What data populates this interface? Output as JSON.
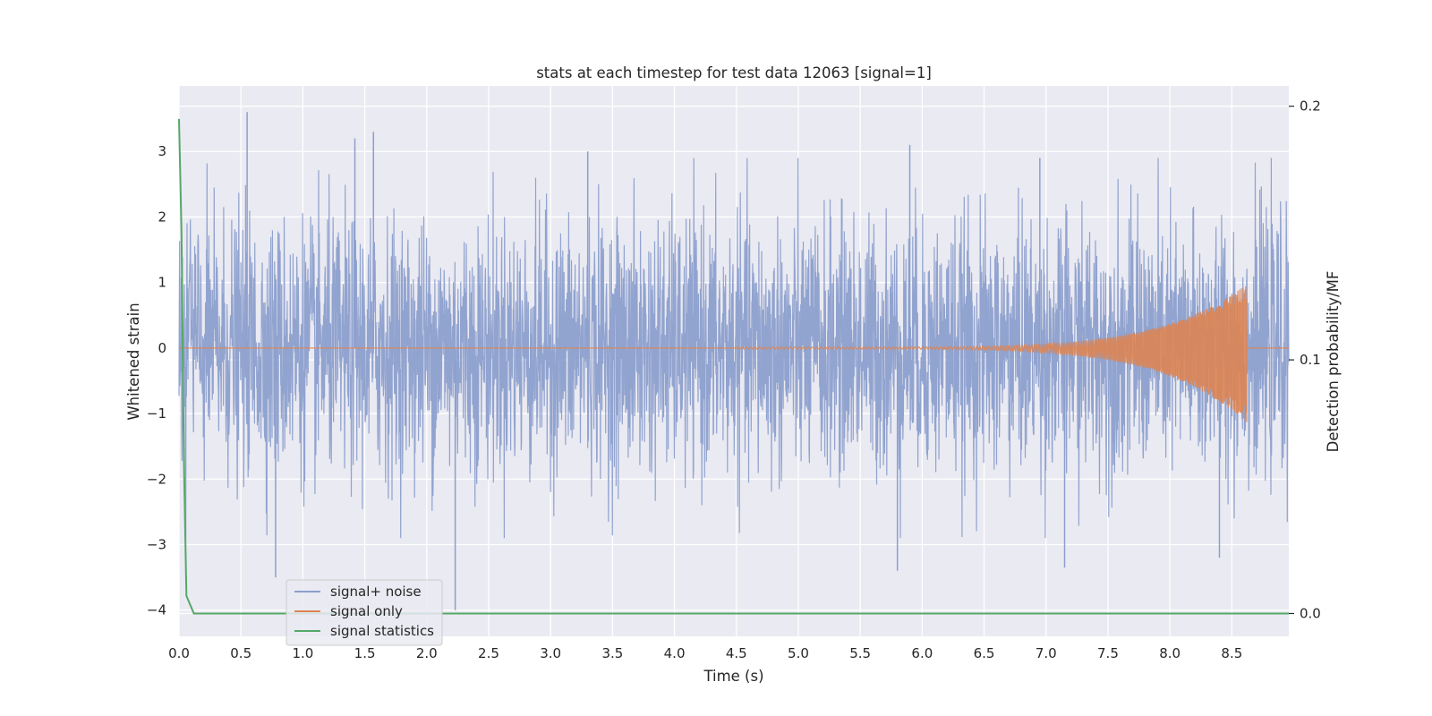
{
  "chart_data": {
    "type": "line",
    "title": "stats at each timestep for test data 12063 [signal=1]",
    "xlabel": "Time (s)",
    "ylabel": "Whitened strain",
    "ylabel_right": "Detection probability/MF",
    "xlim": [
      0,
      8.96
    ],
    "ylim": [
      -4.4,
      4.0
    ],
    "ylim_right": [
      -0.009,
      0.208
    ],
    "x_ticks": [
      "0.0",
      "0.5",
      "1.0",
      "1.5",
      "2.0",
      "2.5",
      "3.0",
      "3.5",
      "4.0",
      "4.5",
      "5.0",
      "5.5",
      "6.0",
      "6.5",
      "7.0",
      "7.5",
      "8.0",
      "8.5"
    ],
    "y_ticks": [
      "−4",
      "−3",
      "−2",
      "−1",
      "0",
      "1",
      "2",
      "3"
    ],
    "y_ticks_right": [
      "0.0",
      "0.1",
      "0.2"
    ],
    "grid": true,
    "legend_position": "lower-left",
    "series": [
      {
        "name": "signal+ noise",
        "axis": "left",
        "color": "#8c9fcc",
        "description_values": {
          "typical_range": [
            -2.0,
            2.0
          ],
          "spikes": [
            [
              0.55,
              3.6
            ],
            [
              1.42,
              3.2
            ],
            [
              1.57,
              3.3
            ],
            [
              0.78,
              -3.5
            ],
            [
              2.23,
              -4.0
            ],
            [
              5.8,
              -3.4
            ],
            [
              7.15,
              -3.35
            ],
            [
              8.4,
              -3.2
            ],
            [
              3.3,
              3.0
            ],
            [
              5.9,
              3.1
            ],
            [
              6.95,
              2.9
            ]
          ]
        }
      },
      {
        "name": "signal only",
        "axis": "left",
        "color": "#dd8452",
        "chirp": {
          "start": 4.5,
          "end": 8.62,
          "peak_amplitude_pos": 0.97,
          "peak_amplitude_neg": -1.13
        }
      },
      {
        "name": "signal statistics",
        "axis": "right",
        "color": "#55a868",
        "x": [
          0.0,
          0.02,
          0.04,
          0.06,
          0.12,
          1.0,
          2.0,
          3.0,
          4.0,
          4.9,
          5.0,
          6.0,
          7.0,
          8.0,
          8.96
        ],
        "values": [
          0.195,
          0.15,
          0.06,
          0.007,
          0.0,
          0.0,
          0.0,
          0.0,
          0.0,
          0.0,
          0.0,
          0.0,
          0.0,
          0.0,
          0.0
        ]
      }
    ]
  }
}
